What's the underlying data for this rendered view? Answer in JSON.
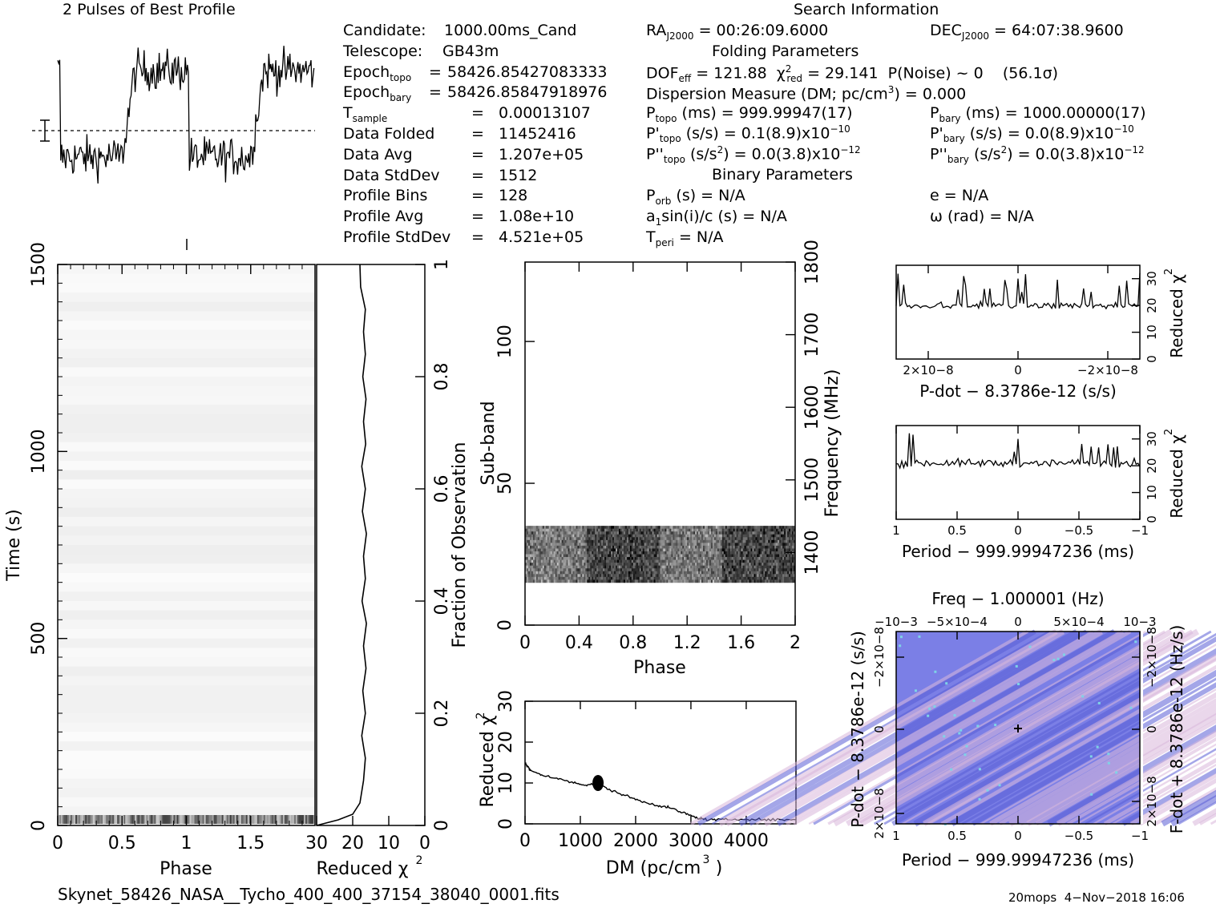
{
  "header": {
    "profile_title": "2 Pulses of Best Profile",
    "search_title": "Search Information",
    "folding_title": "Folding Parameters",
    "binary_title": "Binary Parameters"
  },
  "info_left": [
    {
      "label": "Candidate:",
      "eq": "",
      "value": "1000.00ms_Cand"
    },
    {
      "label": "Telescope:",
      "eq": "",
      "value": "GB43m"
    },
    {
      "label": "Epoch",
      "sub": "topo",
      "eq": "=",
      "value": "58426.85427083333"
    },
    {
      "label": "Epoch",
      "sub": "bary",
      "eq": "=",
      "value": "58426.85847918976"
    },
    {
      "label": "T",
      "sub": "sample",
      "eq": "=",
      "value": "0.00013107"
    },
    {
      "label": "Data Folded",
      "eq": "=",
      "value": "11452416"
    },
    {
      "label": "Data Avg",
      "eq": "=",
      "value": "1.207e+05"
    },
    {
      "label": "Data StdDev",
      "eq": "=",
      "value": "1512"
    },
    {
      "label": "Profile Bins",
      "eq": "=",
      "value": "128"
    },
    {
      "label": "Profile Avg",
      "eq": "=",
      "value": "1.08e+10"
    },
    {
      "label": "Profile StdDev",
      "eq": "=",
      "value": "4.521e+05"
    }
  ],
  "search_info": {
    "ra": "= 00:26:09.6000",
    "dec": "= 64:07:38.9600",
    "dof": "= 121.88",
    "chi2": "= 29.141",
    "pnoise": "P(Noise) ~ 0",
    "sigma": "(56.1σ)",
    "dm_line": "Dispersion Measure (DM; pc/cm",
    "dm_value": ") = 0.000",
    "p_topo": "(ms) =  999.99947(17)",
    "p_bary": "(ms) =  1000.00000(17)",
    "pd_topo": "(s/s) =  0.1(8.9)x10",
    "pd_bary": "(s/s) = 0.0(8.9)x10",
    "pdd_topo": "(s/s",
    "pdd_topo_tail": ") = 0.0(3.8)x10",
    "pdd_bary": "(s/s",
    "pdd_bary_tail": ") = 0.0(3.8)x10",
    "exp10": "−10",
    "exp12": "−12",
    "porb": "(s) = N/A",
    "a1": "sin(i)/c (s) = N/A",
    "tperi": "= N/A",
    "e": "e = N/A",
    "omega": "ω (rad) = N/A"
  },
  "footer": {
    "filename": "Skynet_58426_NASA__Tycho_400_400_37154_38040_0001.fits",
    "stamp": "20mops  4−Nov−2018 16:06"
  },
  "colors": {
    "axis": "#000000",
    "ppdot_bg": "#7b7fe6",
    "ppdot_light": "#d9b8dc",
    "ppdot_cyan": "#7fd3e6"
  },
  "chart_data": [
    {
      "id": "profile",
      "type": "line",
      "title": "2 Pulses of Best Profile",
      "xlim": [
        0,
        2
      ],
      "description_values": "noisy pulse profile, two cycles, high between phase ~0.55-1.0 and 1.55-2.0",
      "y_levels": {
        "low": 0.35,
        "high": 0.8
      }
    },
    {
      "id": "time_phase",
      "type": "heatmap",
      "xlabel": "Phase",
      "ylabel": "Time (s)",
      "xlim": [
        0,
        2
      ],
      "ylim": [
        0,
        1500
      ],
      "xticks": [
        "0",
        "0.5",
        "1",
        "1.5"
      ],
      "yticks": [
        "0",
        "500",
        "1000",
        "1500"
      ]
    },
    {
      "id": "time_chi2",
      "type": "line",
      "xlabel": "Reduced χ2",
      "ylabel": "Fraction of Observation",
      "xlim": [
        30,
        0
      ],
      "ylim": [
        0,
        1
      ],
      "xticks": [
        "30",
        "20",
        "10",
        "0"
      ],
      "yticks": [
        "0",
        "0.2",
        "0.4",
        "0.6",
        "0.8",
        "1"
      ],
      "x": [
        30,
        24,
        20,
        18,
        17,
        16.5,
        17.5,
        16.5,
        17.2,
        16.3,
        17,
        16.2,
        17.4,
        16.5,
        17,
        16.2,
        17.3,
        16.5,
        17.5,
        16.4,
        17,
        16.3,
        17.2,
        16.5,
        17,
        16.5,
        17.8,
        18
      ],
      "y": [
        0,
        0.01,
        0.02,
        0.04,
        0.08,
        0.12,
        0.16,
        0.2,
        0.24,
        0.28,
        0.32,
        0.36,
        0.4,
        0.44,
        0.48,
        0.52,
        0.56,
        0.6,
        0.64,
        0.68,
        0.72,
        0.76,
        0.8,
        0.84,
        0.88,
        0.92,
        0.96,
        1.0
      ]
    },
    {
      "id": "subband_phase",
      "type": "heatmap",
      "xlabel": "Phase",
      "ylabel": "Sub-band",
      "ylabel_right": "Frequency (MHz)",
      "xlim": [
        0,
        2
      ],
      "ylim": [
        0,
        128
      ],
      "yright_lim": [
        1300,
        1800
      ],
      "xticks": [
        "0",
        "0.4",
        "0.8",
        "1.2",
        "1.6",
        "2"
      ],
      "yticks": [
        "0",
        "50",
        "100"
      ],
      "yright_ticks": [
        "1400",
        "1500",
        "1600",
        "1700",
        "1800"
      ],
      "band": [
        15,
        35
      ]
    },
    {
      "id": "dm_chi2",
      "type": "line",
      "xlabel": "DM (pc/cm3)",
      "ylabel": "Reduced χ2",
      "xlim": [
        0,
        4900
      ],
      "ylim": [
        0,
        30
      ],
      "xticks": [
        "0",
        "1000",
        "2000",
        "3000",
        "4000"
      ],
      "yticks": [
        "0",
        "10",
        "20",
        "30"
      ],
      "x": [
        0,
        50,
        100,
        300,
        600,
        900,
        1100,
        1300,
        1500,
        1800,
        2100,
        2400,
        2600,
        2900,
        3100,
        3300,
        3600,
        4000,
        4400,
        4900
      ],
      "y": [
        15,
        14,
        13,
        12,
        11,
        10,
        9.5,
        10,
        8.5,
        7,
        5.5,
        4.5,
        4,
        2.5,
        1.5,
        1.0,
        1.0,
        1.2,
        1.0,
        1.0
      ]
    },
    {
      "id": "pdot_chi2",
      "type": "line",
      "xlabel": "P-dot − 8.3786e-12 (s/s)",
      "ylabel": "Reduced χ2",
      "xlim": [
        3e-08,
        -3e-08
      ],
      "ylim": [
        0,
        35
      ],
      "xticks": [
        "2×10−8",
        "0",
        "−2×10−8"
      ],
      "yticks": [
        "0",
        "10",
        "20",
        "30"
      ],
      "level": 20
    },
    {
      "id": "period_chi2",
      "type": "line",
      "xlabel": "Period − 999.99947236 (ms)",
      "ylabel": "Reduced χ2",
      "xlim": [
        1,
        -1
      ],
      "ylim": [
        0,
        35
      ],
      "xticks": [
        "1",
        "0.5",
        "0",
        "−0.5",
        "−1"
      ],
      "yticks": [
        "0",
        "10",
        "20",
        "30"
      ],
      "level": 21
    },
    {
      "id": "p_pdot",
      "type": "heatmap",
      "title": "Freq − 1.000001 (Hz)",
      "xlabel": "Period − 999.99947236 (ms)",
      "ylabel": "P-dot − 8.3786e-12 (s/s)",
      "ylabel_right": "F-dot + 8.3786e-12 (Hz/s)",
      "xticks": [
        "1",
        "0.5",
        "0",
        "−0.5",
        "−1"
      ],
      "top_ticks": [
        "−10−3",
        "−5×10−4",
        "0",
        "5×10−4",
        "10−3"
      ],
      "yticks": [
        "2×10−8",
        "0",
        "−2×10−8"
      ],
      "yright_ticks": [
        "2×10−8",
        "0",
        "−2×10−8"
      ]
    }
  ]
}
